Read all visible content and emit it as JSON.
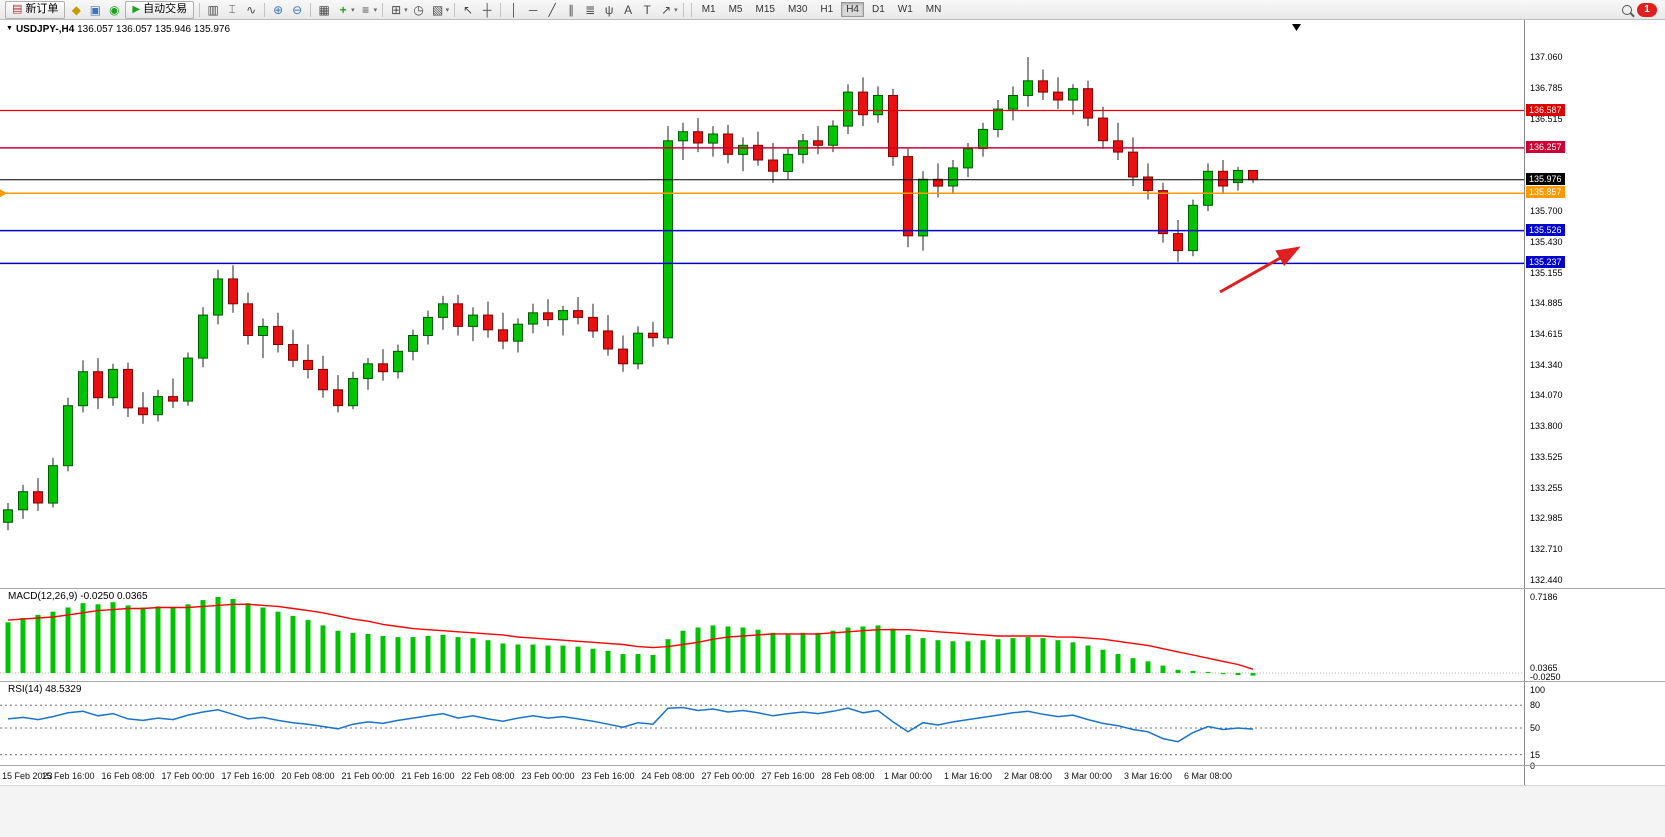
{
  "toolbar": {
    "items": [
      {
        "type": "button",
        "name": "new-order-button",
        "label": "新订单",
        "icon": "new-order-icon"
      },
      {
        "type": "icon",
        "name": "metaeditor-icon"
      },
      {
        "type": "icon",
        "name": "charts-icon"
      },
      {
        "type": "icon",
        "name": "signals-icon"
      },
      {
        "type": "button",
        "name": "autotrading-button",
        "label": "自动交易",
        "icon": "autotrading-icon"
      },
      {
        "type": "sep"
      },
      {
        "type": "icon",
        "name": "bar-chart-icon"
      },
      {
        "type": "icon",
        "name": "candlestick-icon"
      },
      {
        "type": "icon",
        "name": "line-chart-icon"
      },
      {
        "type": "sep"
      },
      {
        "type": "icon",
        "name": "zoom-in-icon"
      },
      {
        "type": "icon",
        "name": "zoom-out-icon"
      },
      {
        "type": "sep"
      },
      {
        "type": "icon",
        "name": "tile-windows-icon"
      },
      {
        "type": "icon",
        "name": "indicators-icon",
        "dropdown": true
      },
      {
        "type": "icon",
        "name": "indicator-windows-icon",
        "dropdown": true
      },
      {
        "type": "sep"
      },
      {
        "type": "icon",
        "name": "periods-icon",
        "dropdown": true
      },
      {
        "type": "icon",
        "name": "clock-icon"
      },
      {
        "type": "icon",
        "name": "templates-icon",
        "dropdown": true
      },
      {
        "type": "sep"
      },
      {
        "type": "icon",
        "name": "cursor-icon"
      },
      {
        "type": "icon",
        "name": "crosshair-icon"
      },
      {
        "type": "sep"
      },
      {
        "type": "icon",
        "name": "vertical-line-icon"
      },
      {
        "type": "icon",
        "name": "horizontal-line-icon"
      },
      {
        "type": "icon",
        "name": "trendline-icon"
      },
      {
        "type": "icon",
        "name": "equidistant-channel-icon"
      },
      {
        "type": "icon",
        "name": "fibonacci-retracement-icon"
      },
      {
        "type": "icon",
        "name": "andrews-pitchfork-icon"
      },
      {
        "type": "icon",
        "name": "text-icon"
      },
      {
        "type": "icon",
        "name": "text-label-icon"
      },
      {
        "type": "icon",
        "name": "arrows-icon",
        "dropdown": true
      },
      {
        "type": "sep"
      }
    ],
    "timeframes": [
      "M1",
      "M5",
      "M15",
      "M30",
      "H1",
      "H4",
      "D1",
      "W1",
      "MN"
    ],
    "active_timeframe": "H4",
    "notification_count": "1"
  },
  "chart_data": [
    {
      "type": "candlestick",
      "title": "USDJPY-,H4",
      "title_ohlc": "136.057 136.057 135.946 135.976",
      "symbol": "USDJPY-",
      "timeframe": "H4",
      "ylim": [
        132.37,
        137.39
      ],
      "axis_ticks": [
        "137.060",
        "136.785",
        "136.515",
        "135.700",
        "135.430",
        "135.155",
        "134.885",
        "134.615",
        "134.340",
        "134.070",
        "133.800",
        "133.525",
        "133.255",
        "132.985",
        "132.710",
        "132.440"
      ],
      "badges": [
        {
          "price": 136.587,
          "label": "136.587",
          "color": "#dd0000"
        },
        {
          "price": 136.257,
          "label": "136.257",
          "color": "#cc0033"
        },
        {
          "price": 135.976,
          "label": "135.976",
          "color": "#000000"
        },
        {
          "price": 135.857,
          "label": "135.857",
          "color": "#ff9900"
        },
        {
          "price": 135.526,
          "label": "135.526",
          "color": "#0000cc"
        },
        {
          "price": 135.237,
          "label": "135.237",
          "color": "#0000cc"
        }
      ],
      "levels": [
        {
          "price": 136.587,
          "color": "#dd0000",
          "width": 1.2
        },
        {
          "price": 136.257,
          "color": "#cc0033",
          "width": 1.5
        },
        {
          "price": 135.976,
          "color": "#000000",
          "width": 1
        },
        {
          "price": 135.857,
          "color": "#ff9900",
          "width": 1.5,
          "marker": true
        },
        {
          "price": 135.526,
          "color": "#0000cc",
          "width": 1.5
        },
        {
          "price": 135.237,
          "color": "#0000cc",
          "width": 1.5
        }
      ],
      "x_labels": [
        "15 Feb 2023",
        "15 Feb 16:00",
        "16 Feb 08:00",
        "17 Feb 00:00",
        "17 Feb 16:00",
        "20 Feb 08:00",
        "21 Feb 00:00",
        "21 Feb 16:00",
        "22 Feb 08:00",
        "23 Feb 00:00",
        "23 Feb 16:00",
        "24 Feb 08:00",
        "27 Feb 00:00",
        "27 Feb 16:00",
        "28 Feb 08:00",
        "1 Mar 00:00",
        "1 Mar 16:00",
        "2 Mar 08:00",
        "3 Mar 00:00",
        "3 Mar 16:00",
        "6 Mar 08:00"
      ],
      "candles": [
        [
          132.95,
          133.12,
          132.88,
          133.06
        ],
        [
          133.06,
          133.28,
          132.98,
          133.22
        ],
        [
          133.22,
          133.34,
          133.05,
          133.12
        ],
        [
          133.12,
          133.52,
          133.08,
          133.45
        ],
        [
          133.45,
          134.05,
          133.4,
          133.98
        ],
        [
          133.98,
          134.38,
          133.92,
          134.28
        ],
        [
          134.28,
          134.4,
          133.95,
          134.05
        ],
        [
          134.05,
          134.35,
          133.98,
          134.3
        ],
        [
          134.3,
          134.36,
          133.88,
          133.96
        ],
        [
          133.96,
          134.1,
          133.82,
          133.9
        ],
        [
          133.9,
          134.12,
          133.84,
          134.06
        ],
        [
          134.06,
          134.22,
          133.96,
          134.02
        ],
        [
          134.02,
          134.45,
          133.98,
          134.4
        ],
        [
          134.4,
          134.85,
          134.32,
          134.78
        ],
        [
          134.78,
          135.18,
          134.7,
          135.1
        ],
        [
          135.1,
          135.22,
          134.8,
          134.88
        ],
        [
          134.88,
          134.98,
          134.52,
          134.6
        ],
        [
          134.6,
          134.75,
          134.4,
          134.68
        ],
        [
          134.68,
          134.8,
          134.45,
          134.52
        ],
        [
          134.52,
          134.65,
          134.32,
          134.38
        ],
        [
          134.38,
          134.52,
          134.22,
          134.3
        ],
        [
          134.3,
          134.42,
          134.05,
          134.12
        ],
        [
          134.12,
          134.25,
          133.92,
          133.98
        ],
        [
          133.98,
          134.28,
          133.95,
          134.22
        ],
        [
          134.22,
          134.4,
          134.12,
          134.35
        ],
        [
          134.35,
          134.48,
          134.2,
          134.28
        ],
        [
          134.28,
          134.52,
          134.22,
          134.46
        ],
        [
          134.46,
          134.65,
          134.38,
          134.6
        ],
        [
          134.6,
          134.82,
          134.52,
          134.76
        ],
        [
          134.76,
          134.95,
          134.65,
          134.88
        ],
        [
          134.88,
          134.96,
          134.6,
          134.68
        ],
        [
          134.68,
          134.85,
          134.55,
          134.78
        ],
        [
          134.78,
          134.9,
          134.58,
          134.65
        ],
        [
          134.65,
          134.8,
          134.48,
          134.55
        ],
        [
          134.55,
          134.75,
          134.45,
          134.7
        ],
        [
          134.7,
          134.88,
          134.62,
          134.8
        ],
        [
          134.8,
          134.92,
          134.68,
          134.74
        ],
        [
          134.74,
          134.86,
          134.6,
          134.82
        ],
        [
          134.82,
          134.94,
          134.7,
          134.76
        ],
        [
          134.76,
          134.88,
          134.58,
          134.64
        ],
        [
          134.64,
          134.78,
          134.42,
          134.48
        ],
        [
          134.48,
          134.6,
          134.28,
          134.35
        ],
        [
          134.35,
          134.68,
          134.3,
          134.62
        ],
        [
          134.62,
          134.72,
          134.5,
          134.58
        ],
        [
          134.58,
          136.45,
          134.52,
          136.32
        ],
        [
          136.32,
          136.48,
          136.15,
          136.4
        ],
        [
          136.4,
          136.52,
          136.22,
          136.3
        ],
        [
          136.3,
          136.45,
          136.18,
          136.38
        ],
        [
          136.38,
          136.46,
          136.12,
          136.2
        ],
        [
          136.2,
          136.35,
          136.05,
          136.28
        ],
        [
          136.28,
          136.4,
          136.1,
          136.15
        ],
        [
          136.15,
          136.3,
          135.95,
          136.05
        ],
        [
          136.05,
          136.25,
          135.98,
          136.2
        ],
        [
          136.2,
          136.38,
          136.12,
          136.32
        ],
        [
          136.32,
          136.45,
          136.2,
          136.28
        ],
        [
          136.28,
          136.5,
          136.22,
          136.45
        ],
        [
          136.45,
          136.82,
          136.38,
          136.75
        ],
        [
          136.75,
          136.88,
          136.45,
          136.55
        ],
        [
          136.55,
          136.8,
          136.48,
          136.72
        ],
        [
          136.72,
          136.78,
          136.1,
          136.18
        ],
        [
          136.18,
          136.25,
          135.38,
          135.48
        ],
        [
          135.48,
          136.05,
          135.35,
          135.98
        ],
        [
          135.98,
          136.12,
          135.82,
          135.92
        ],
        [
          135.92,
          136.15,
          135.85,
          136.08
        ],
        [
          136.08,
          136.3,
          136.0,
          136.25
        ],
        [
          136.25,
          136.48,
          136.18,
          136.42
        ],
        [
          136.42,
          136.68,
          136.35,
          136.6
        ],
        [
          136.6,
          136.8,
          136.5,
          136.72
        ],
        [
          136.72,
          137.06,
          136.62,
          136.85
        ],
        [
          136.85,
          136.95,
          136.68,
          136.75
        ],
        [
          136.75,
          136.88,
          136.6,
          136.68
        ],
        [
          136.68,
          136.82,
          136.55,
          136.78
        ],
        [
          136.78,
          136.85,
          136.45,
          136.52
        ],
        [
          136.52,
          136.62,
          136.25,
          136.32
        ],
        [
          136.32,
          136.48,
          136.15,
          136.22
        ],
        [
          136.22,
          136.35,
          135.92,
          136.0
        ],
        [
          136.0,
          136.12,
          135.8,
          135.88
        ],
        [
          135.88,
          135.95,
          135.42,
          135.5
        ],
        [
          135.5,
          135.62,
          135.25,
          135.35
        ],
        [
          135.35,
          135.8,
          135.3,
          135.75
        ],
        [
          135.75,
          136.12,
          135.7,
          136.05
        ],
        [
          136.05,
          136.15,
          135.85,
          135.92
        ],
        [
          135.95,
          136.09,
          135.88,
          136.057
        ],
        [
          136.057,
          136.057,
          135.946,
          135.976
        ]
      ],
      "arrow_annotation": {
        "from": [
          1220,
          272
        ],
        "to": [
          1298,
          228
        ],
        "color": "#e02020"
      }
    },
    {
      "type": "bar",
      "name": "MACD(12,26,9)",
      "current_values": "-0.0250 0.0365",
      "scale_max_label": "0.7186",
      "value_labels": [
        "0.0365",
        "-0.0250"
      ],
      "values": [
        0.48,
        0.52,
        0.55,
        0.58,
        0.62,
        0.66,
        0.65,
        0.67,
        0.64,
        0.62,
        0.63,
        0.62,
        0.65,
        0.69,
        0.72,
        0.7,
        0.66,
        0.62,
        0.58,
        0.54,
        0.5,
        0.45,
        0.4,
        0.38,
        0.37,
        0.35,
        0.34,
        0.34,
        0.35,
        0.36,
        0.34,
        0.33,
        0.31,
        0.28,
        0.27,
        0.27,
        0.26,
        0.26,
        0.25,
        0.23,
        0.21,
        0.18,
        0.18,
        0.17,
        0.32,
        0.4,
        0.43,
        0.45,
        0.44,
        0.43,
        0.41,
        0.38,
        0.37,
        0.38,
        0.38,
        0.4,
        0.43,
        0.44,
        0.45,
        0.42,
        0.36,
        0.33,
        0.31,
        0.3,
        0.3,
        0.31,
        0.32,
        0.33,
        0.34,
        0.33,
        0.31,
        0.29,
        0.26,
        0.22,
        0.18,
        0.14,
        0.11,
        0.07,
        0.03,
        0.02,
        0.01,
        -0.01,
        -0.02,
        -0.025
      ],
      "signal": [
        0.5,
        0.51,
        0.52,
        0.53,
        0.55,
        0.57,
        0.59,
        0.6,
        0.61,
        0.61,
        0.62,
        0.62,
        0.62,
        0.63,
        0.64,
        0.65,
        0.65,
        0.64,
        0.63,
        0.61,
        0.59,
        0.57,
        0.54,
        0.51,
        0.49,
        0.46,
        0.44,
        0.42,
        0.41,
        0.4,
        0.39,
        0.38,
        0.37,
        0.36,
        0.34,
        0.33,
        0.32,
        0.31,
        0.3,
        0.29,
        0.28,
        0.27,
        0.25,
        0.24,
        0.25,
        0.27,
        0.29,
        0.32,
        0.34,
        0.35,
        0.36,
        0.37,
        0.37,
        0.37,
        0.37,
        0.38,
        0.39,
        0.4,
        0.41,
        0.41,
        0.41,
        0.4,
        0.39,
        0.38,
        0.37,
        0.36,
        0.35,
        0.35,
        0.35,
        0.35,
        0.34,
        0.34,
        0.33,
        0.32,
        0.3,
        0.28,
        0.26,
        0.23,
        0.2,
        0.17,
        0.14,
        0.11,
        0.08,
        0.036
      ]
    },
    {
      "type": "line",
      "name": "RSI(14)",
      "current_value": "48.5329",
      "scale_ticks": [
        "100",
        "80",
        "50",
        "15",
        "0"
      ],
      "levels": [
        80,
        50,
        15
      ],
      "ylim": [
        0,
        100
      ],
      "values": [
        62,
        64,
        61,
        65,
        70,
        72,
        66,
        69,
        62,
        60,
        63,
        61,
        67,
        71,
        74,
        68,
        62,
        64,
        60,
        57,
        55,
        52,
        49,
        55,
        58,
        56,
        60,
        63,
        66,
        69,
        63,
        66,
        62,
        59,
        63,
        66,
        63,
        65,
        62,
        59,
        55,
        51,
        57,
        55,
        76,
        77,
        73,
        75,
        71,
        73,
        70,
        66,
        69,
        71,
        69,
        72,
        76,
        70,
        73,
        58,
        45,
        57,
        54,
        58,
        61,
        64,
        67,
        70,
        72,
        68,
        65,
        67,
        61,
        56,
        53,
        48,
        45,
        36,
        32,
        44,
        52,
        48,
        50,
        48.53
      ]
    }
  ]
}
